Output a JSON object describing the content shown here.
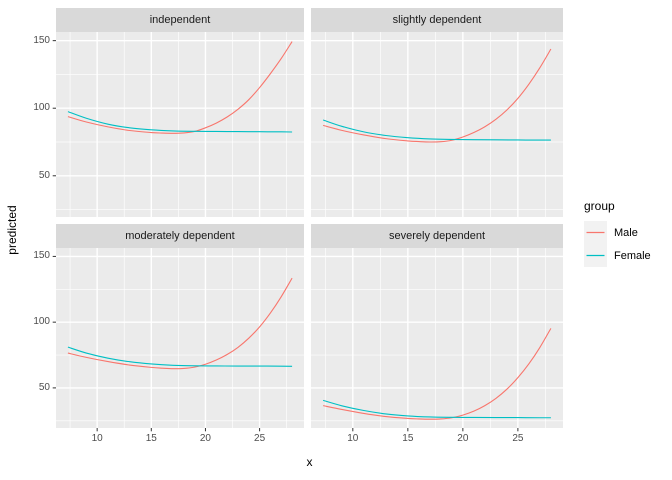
{
  "chart_data": {
    "type": "line",
    "xlabel": "x",
    "ylabel": "predicted",
    "x_domain": [
      6.2,
      29.1
    ],
    "y_domain": [
      19.5,
      156.4
    ],
    "x_ticks": [
      10,
      15,
      20,
      25
    ],
    "y_ticks": [
      50,
      100,
      150
    ],
    "x_minor": [
      7.5,
      12.5,
      17.5,
      22.5,
      27.5
    ],
    "y_minor": [
      25,
      75,
      125
    ],
    "grid": "on",
    "legend": {
      "title": "group",
      "position": "right",
      "entries": [
        {
          "label": "Male",
          "color": "#F8766D"
        },
        {
          "label": "Female",
          "color": "#00BFC4"
        }
      ]
    },
    "facets": [
      {
        "label": "independent",
        "series": [
          {
            "name": "Male",
            "color": "#F8766D",
            "points": [
              [
                7.3,
                93.8
              ],
              [
                9,
                89.8
              ],
              [
                11,
                86.2
              ],
              [
                13,
                83.5
              ],
              [
                15,
                82.0
              ],
              [
                16,
                81.6
              ],
              [
                17,
                81.4
              ],
              [
                18,
                81.7
              ],
              [
                19,
                82.8
              ],
              [
                20,
                85.5
              ],
              [
                21,
                89.0
              ],
              [
                22,
                93.5
              ],
              [
                23,
                99.2
              ],
              [
                24,
                106.3
              ],
              [
                25,
                115.3
              ],
              [
                26,
                125.6
              ],
              [
                27,
                136.8
              ],
              [
                28,
                149.3
              ]
            ]
          },
          {
            "name": "Female",
            "color": "#00BFC4",
            "points": [
              [
                7.3,
                97.5
              ],
              [
                9,
                92.6
              ],
              [
                11,
                88.2
              ],
              [
                13,
                85.5
              ],
              [
                15,
                84.0
              ],
              [
                17,
                83.2
              ],
              [
                19,
                82.9
              ],
              [
                21,
                82.8
              ],
              [
                23,
                82.7
              ],
              [
                25,
                82.6
              ],
              [
                27,
                82.5
              ],
              [
                28,
                82.4
              ]
            ]
          }
        ]
      },
      {
        "label": "slightly dependent",
        "series": [
          {
            "name": "Male",
            "color": "#F8766D",
            "points": [
              [
                7.3,
                87.3
              ],
              [
                9,
                83.6
              ],
              [
                11,
                80.2
              ],
              [
                13,
                77.5
              ],
              [
                15,
                75.8
              ],
              [
                16,
                75.3
              ],
              [
                17,
                75.0
              ],
              [
                18,
                75.2
              ],
              [
                19,
                76.3
              ],
              [
                20,
                78.7
              ],
              [
                21,
                82.0
              ],
              [
                22,
                86.3
              ],
              [
                23,
                91.8
              ],
              [
                24,
                98.7
              ],
              [
                25,
                107.3
              ],
              [
                26,
                117.8
              ],
              [
                27,
                130.0
              ],
              [
                28,
                143.8
              ]
            ]
          },
          {
            "name": "Female",
            "color": "#00BFC4",
            "points": [
              [
                7.3,
                91.3
              ],
              [
                9,
                86.6
              ],
              [
                11,
                82.5
              ],
              [
                13,
                79.8
              ],
              [
                15,
                78.2
              ],
              [
                17,
                77.3
              ],
              [
                19,
                76.9
              ],
              [
                21,
                76.7
              ],
              [
                23,
                76.6
              ],
              [
                25,
                76.5
              ],
              [
                27,
                76.4
              ],
              [
                28,
                76.4
              ]
            ]
          }
        ]
      },
      {
        "label": "moderately dependent",
        "series": [
          {
            "name": "Male",
            "color": "#F8766D",
            "points": [
              [
                7.3,
                76.5
              ],
              [
                9,
                73.2
              ],
              [
                11,
                70.0
              ],
              [
                13,
                67.4
              ],
              [
                15,
                65.6
              ],
              [
                16,
                65.0
              ],
              [
                17,
                64.6
              ],
              [
                18,
                64.8
              ],
              [
                19,
                65.8
              ],
              [
                20,
                68.0
              ],
              [
                21,
                71.2
              ],
              [
                22,
                75.4
              ],
              [
                23,
                80.8
              ],
              [
                24,
                87.8
              ],
              [
                25,
                96.4
              ],
              [
                26,
                107.0
              ],
              [
                27,
                119.4
              ],
              [
                28,
                133.5
              ]
            ]
          },
          {
            "name": "Female",
            "color": "#00BFC4",
            "points": [
              [
                7.3,
                81.0
              ],
              [
                9,
                76.5
              ],
              [
                11,
                72.6
              ],
              [
                13,
                69.9
              ],
              [
                15,
                68.2
              ],
              [
                17,
                67.2
              ],
              [
                19,
                66.8
              ],
              [
                21,
                66.7
              ],
              [
                23,
                66.6
              ],
              [
                25,
                66.6
              ],
              [
                27,
                66.5
              ],
              [
                28,
                66.4
              ]
            ]
          }
        ]
      },
      {
        "label": "severely dependent",
        "series": [
          {
            "name": "Male",
            "color": "#F8766D",
            "points": [
              [
                7.3,
                36.5
              ],
              [
                9,
                33.6
              ],
              [
                11,
                30.6
              ],
              [
                13,
                28.2
              ],
              [
                15,
                26.8
              ],
              [
                16,
                26.4
              ],
              [
                17,
                26.2
              ],
              [
                18,
                26.4
              ],
              [
                19,
                27.3
              ],
              [
                20,
                29.3
              ],
              [
                21,
                32.3
              ],
              [
                22,
                36.5
              ],
              [
                23,
                42.0
              ],
              [
                24,
                49.0
              ],
              [
                25,
                57.8
              ],
              [
                26,
                68.3
              ],
              [
                27,
                80.8
              ],
              [
                28,
                95.3
              ]
            ]
          },
          {
            "name": "Female",
            "color": "#00BFC4",
            "points": [
              [
                7.3,
                40.5
              ],
              [
                9,
                36.4
              ],
              [
                11,
                32.8
              ],
              [
                13,
                30.2
              ],
              [
                15,
                28.7
              ],
              [
                17,
                27.9
              ],
              [
                19,
                27.6
              ],
              [
                21,
                27.5
              ],
              [
                23,
                27.4
              ],
              [
                25,
                27.4
              ],
              [
                27,
                27.3
              ],
              [
                28,
                27.3
              ]
            ]
          }
        ]
      }
    ],
    "theme": {
      "panel_bg": "#EBEBEB",
      "strip_bg": "#D9D9D9",
      "grid_color": "#FFFFFF",
      "tick_mark": "#333333",
      "tick_label_color": "#4D4D4D",
      "strip_text_color": "#1A1A1A",
      "legend_key_bg": "#F2F2F2",
      "male_color": "#F8766D",
      "female_color": "#00BFC4"
    }
  }
}
